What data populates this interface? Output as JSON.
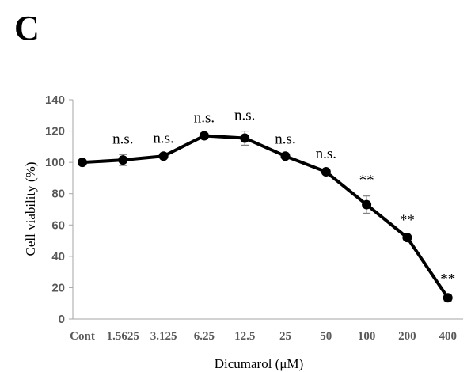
{
  "panel_label": "C",
  "chart_data": {
    "type": "line",
    "categories": [
      "Cont",
      "1.5625",
      "3.125",
      "6.25",
      "12.5",
      "25",
      "50",
      "100",
      "200",
      "400"
    ],
    "series": [
      {
        "values": [
          100,
          101.5,
          104,
          117,
          115.5,
          104,
          94,
          73,
          52,
          13.5
        ],
        "error": [
          1,
          3.5,
          1.5,
          1.5,
          4.5,
          1,
          1.5,
          5.5,
          1,
          2
        ]
      }
    ],
    "annotations": [
      "",
      "n.s.",
      "n.s.",
      "n.s.",
      "n.s.",
      "n.s.",
      "n.s.",
      "**",
      "**",
      "**"
    ],
    "yticks": [
      0,
      20,
      40,
      60,
      80,
      100,
      120,
      140
    ],
    "ylim": [
      0,
      140
    ],
    "xlabel": "Dicumarol (μM)",
    "ylabel": "Cell viability (%)",
    "line_color": "#000000",
    "error_bar_color": "#808080",
    "grid": false,
    "legend": "none"
  }
}
